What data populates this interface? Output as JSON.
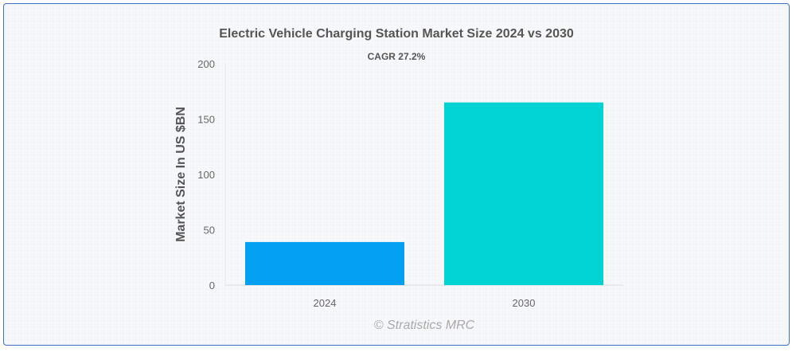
{
  "chart_data": {
    "type": "bar",
    "title": "Electric Vehicle Charging Station Market  Size 2024 vs 2030",
    "subtitle": "CAGR 27.2%",
    "xlabel": "",
    "ylabel": "Market Size In US $BN",
    "categories": [
      "2024",
      "2030"
    ],
    "values": [
      38.9,
      165.0
    ],
    "bar_colors": [
      "#039ff0",
      "#01d3d4"
    ],
    "ylim": [
      0,
      200
    ],
    "yticks": [
      0,
      50,
      100,
      150,
      200
    ],
    "grid": false,
    "legend": "none"
  },
  "watermark": "© Stratistics MRC"
}
